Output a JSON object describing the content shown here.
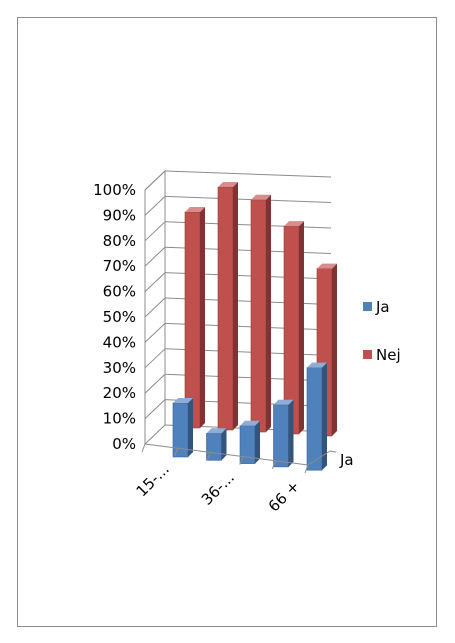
{
  "chart_data": {
    "type": "bar",
    "title": "",
    "categories": [
      "15-...",
      "",
      "36-...",
      "",
      "66 +"
    ],
    "series": [
      {
        "name": "Ja",
        "color": "#4f81bd",
        "values": [
          20,
          10,
          14,
          23,
          38
        ]
      },
      {
        "name": "Nej",
        "color": "#c0504d",
        "values": [
          80,
          90,
          86,
          77,
          62
        ]
      }
    ],
    "depth_label": "Ja",
    "ylim": [
      0,
      100
    ],
    "y_ticks": [
      "0%",
      "10%",
      "20%",
      "30%",
      "40%",
      "50%",
      "60%",
      "70%",
      "80%",
      "90%",
      "100%"
    ],
    "grid": true,
    "legend_position": "right"
  }
}
